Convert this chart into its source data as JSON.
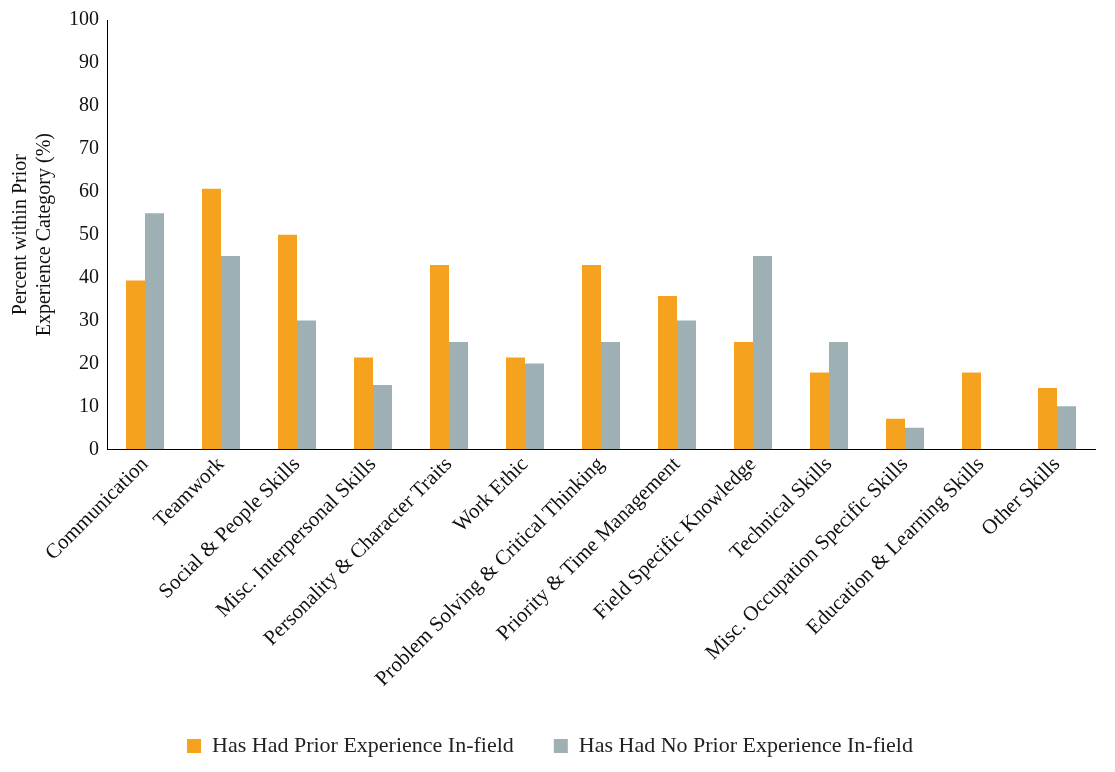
{
  "chart_data": {
    "type": "bar",
    "ylabel": "Percent within Prior Experience Category (%)",
    "categories": [
      "Communication",
      "Teamwork",
      "Social & People Skills",
      "Misc. Interpersonal Skills",
      "Personality & Character Traits",
      "Work Ethic",
      "Problem Solving & Critical Thinking",
      "Priority & Time Management",
      "Field Specific Knowledge",
      "Technical Skills",
      "Misc. Occupation Specific Skills",
      "Education & Learning Skills",
      "Other Skills"
    ],
    "series": [
      {
        "name": "Has Had Prior Experience In-field",
        "color": "#f5a31f",
        "values": [
          39.3,
          60.7,
          50,
          21.4,
          42.9,
          21.4,
          42.9,
          35.7,
          25,
          17.9,
          7.1,
          17.9,
          14.3
        ]
      },
      {
        "name": "Has Had No Prior Experience In-field",
        "color": "#9fb0b5",
        "values": [
          55,
          45,
          30,
          15,
          25,
          20,
          25,
          30,
          45,
          25,
          5,
          0,
          10
        ]
      }
    ],
    "ylim": [
      0,
      100
    ],
    "yticks": [
      0,
      10,
      20,
      30,
      40,
      50,
      60,
      70,
      80,
      90,
      100
    ],
    "grid": false,
    "legend": "bottom"
  }
}
